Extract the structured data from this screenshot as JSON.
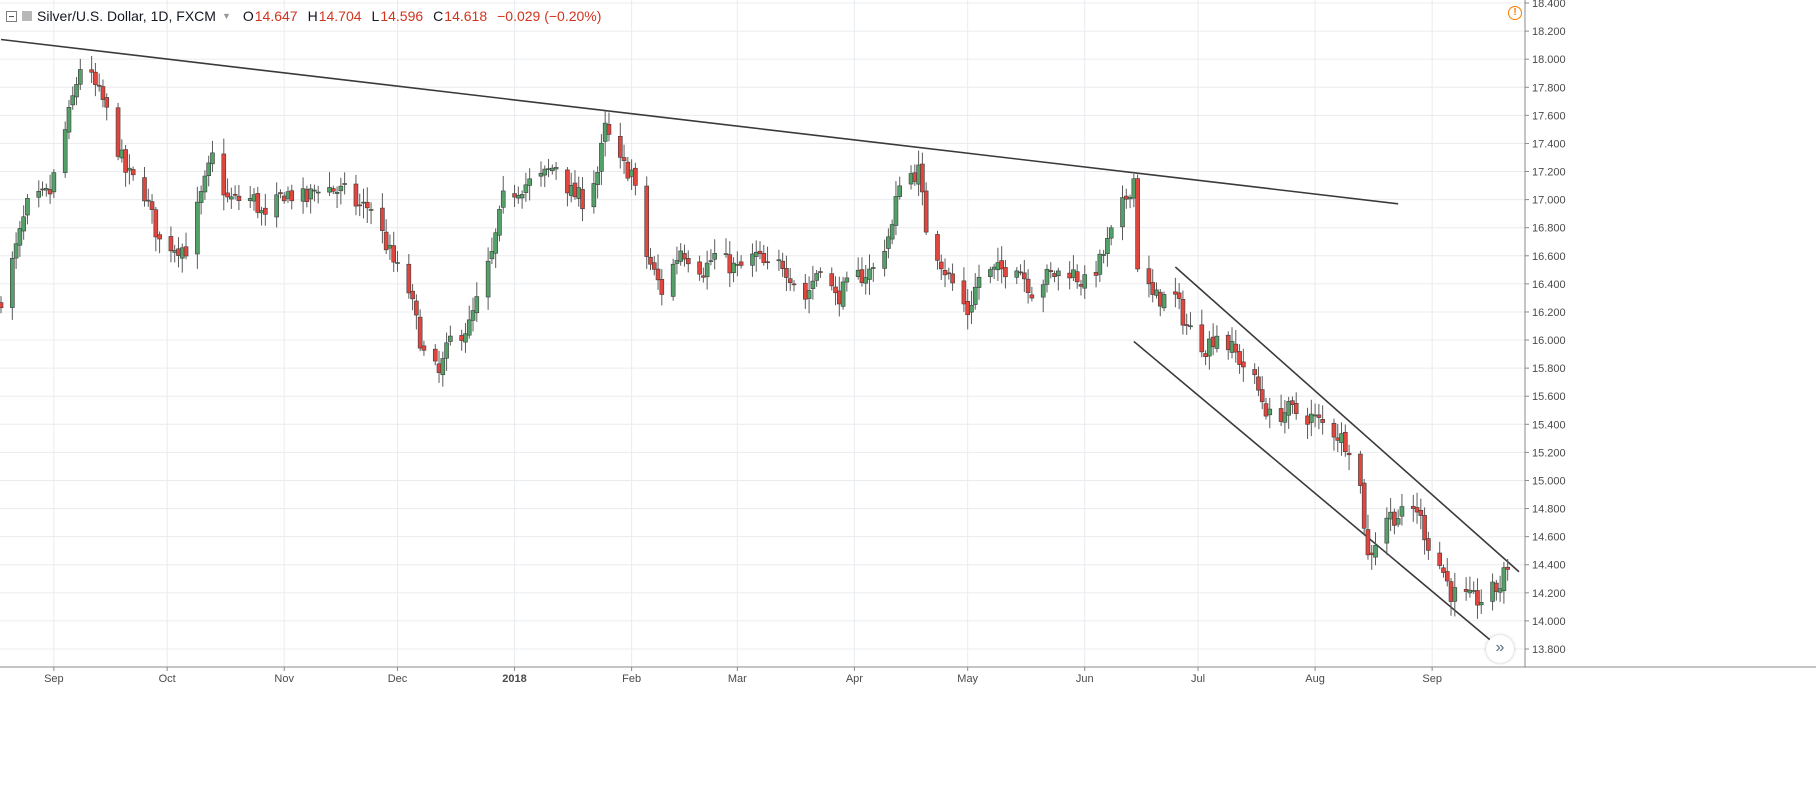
{
  "legend": {
    "title": "Silver/U.S. Dollar, 1D, FXCM",
    "open_label": "O",
    "open": "14.647",
    "high_label": "H",
    "high": "14.704",
    "low_label": "L",
    "low": "14.596",
    "close_label": "C",
    "close": "14.618",
    "change": "−0.029 (−0.20%)"
  },
  "colors": {
    "up": "#53a069",
    "down": "#e0463d",
    "wick": "#5a5a5a",
    "grid": "#e9ecef",
    "axis_text": "#4a4a4a",
    "trendline": "#3a3a3a",
    "alert": "#f57c00"
  },
  "chart_data": {
    "type": "candlestick",
    "symbol": "Silver/U.S. Dollar",
    "interval": "1D",
    "ylim": [
      13.69,
      18.41
    ],
    "grid": true,
    "y_ticks": [
      "13.800",
      "14.000",
      "14.200",
      "14.400",
      "14.600",
      "14.800",
      "15.000",
      "15.200",
      "15.400",
      "15.600",
      "15.800",
      "16.000",
      "16.200",
      "16.400",
      "16.600",
      "16.800",
      "17.000",
      "17.200",
      "17.400",
      "17.600",
      "17.800",
      "18.000",
      "18.200",
      "18.400"
    ],
    "x_axis": {
      "start": "2017-08-18",
      "end": "2018-09-24",
      "labels": [
        {
          "date": "2017-09-01",
          "text": "Sep"
        },
        {
          "date": "2017-10-01",
          "text": "Oct"
        },
        {
          "date": "2017-11-01",
          "text": "Nov"
        },
        {
          "date": "2017-12-01",
          "text": "Dec"
        },
        {
          "date": "2018-01-01",
          "text": "2018"
        },
        {
          "date": "2018-02-01",
          "text": "Feb"
        },
        {
          "date": "2018-03-01",
          "text": "Mar"
        },
        {
          "date": "2018-04-01",
          "text": "Apr"
        },
        {
          "date": "2018-05-01",
          "text": "May"
        },
        {
          "date": "2018-06-01",
          "text": "Jun"
        },
        {
          "date": "2018-07-01",
          "text": "Jul"
        },
        {
          "date": "2018-08-01",
          "text": "Aug"
        },
        {
          "date": "2018-09-01",
          "text": "Sep"
        }
      ]
    },
    "price_anchors": [
      [
        "2017-08-18",
        16.3
      ],
      [
        "2017-08-21",
        16.55
      ],
      [
        "2017-08-25",
        16.95
      ],
      [
        "2017-08-31",
        17.05
      ],
      [
        "2017-09-05",
        17.6
      ],
      [
        "2017-09-08",
        17.95
      ],
      [
        "2017-09-11",
        17.85
      ],
      [
        "2017-09-14",
        17.7
      ],
      [
        "2017-09-20",
        17.2
      ],
      [
        "2017-09-25",
        17.05
      ],
      [
        "2017-09-29",
        16.7
      ],
      [
        "2017-10-06",
        16.65
      ],
      [
        "2017-10-13",
        17.3
      ],
      [
        "2017-10-17",
        17.0
      ],
      [
        "2017-10-24",
        17.0
      ],
      [
        "2017-10-27",
        16.85
      ],
      [
        "2017-11-01",
        17.05
      ],
      [
        "2017-11-07",
        17.0
      ],
      [
        "2017-11-10",
        17.1
      ],
      [
        "2017-11-17",
        17.05
      ],
      [
        "2017-11-21",
        16.95
      ],
      [
        "2017-11-24",
        16.95
      ],
      [
        "2017-11-30",
        16.55
      ],
      [
        "2017-12-04",
        16.35
      ],
      [
        "2017-12-08",
        15.9
      ],
      [
        "2017-12-12",
        15.75
      ],
      [
        "2017-12-15",
        16.0
      ],
      [
        "2017-12-20",
        16.1
      ],
      [
        "2017-12-26",
        16.6
      ],
      [
        "2017-12-29",
        17.0
      ],
      [
        "2018-01-03",
        17.1
      ],
      [
        "2018-01-08",
        17.15
      ],
      [
        "2018-01-12",
        17.25
      ],
      [
        "2018-01-16",
        17.05
      ],
      [
        "2018-01-19",
        17.0
      ],
      [
        "2018-01-23",
        17.2
      ],
      [
        "2018-01-25",
        17.5
      ],
      [
        "2018-01-29",
        17.25
      ],
      [
        "2018-02-01",
        17.2
      ],
      [
        "2018-02-05",
        16.6
      ],
      [
        "2018-02-09",
        16.35
      ],
      [
        "2018-02-14",
        16.65
      ],
      [
        "2018-02-20",
        16.5
      ],
      [
        "2018-02-23",
        16.6
      ],
      [
        "2018-03-01",
        16.5
      ],
      [
        "2018-03-06",
        16.6
      ],
      [
        "2018-03-09",
        16.5
      ],
      [
        "2018-03-13",
        16.55
      ],
      [
        "2018-03-19",
        16.3
      ],
      [
        "2018-03-23",
        16.55
      ],
      [
        "2018-03-27",
        16.3
      ],
      [
        "2018-04-02",
        16.45
      ],
      [
        "2018-04-06",
        16.5
      ],
      [
        "2018-04-11",
        16.8
      ],
      [
        "2018-04-13",
        17.15
      ],
      [
        "2018-04-18",
        17.2
      ],
      [
        "2018-04-20",
        16.8
      ],
      [
        "2018-04-25",
        16.5
      ],
      [
        "2018-05-01",
        16.2
      ],
      [
        "2018-05-04",
        16.45
      ],
      [
        "2018-05-10",
        16.5
      ],
      [
        "2018-05-14",
        16.55
      ],
      [
        "2018-05-18",
        16.35
      ],
      [
        "2018-05-22",
        16.45
      ],
      [
        "2018-05-28",
        16.5
      ],
      [
        "2018-06-01",
        16.4
      ],
      [
        "2018-06-05",
        16.55
      ],
      [
        "2018-06-11",
        16.95
      ],
      [
        "2018-06-14",
        17.15
      ],
      [
        "2018-06-15",
        16.55
      ],
      [
        "2018-06-19",
        16.3
      ],
      [
        "2018-06-25",
        16.3
      ],
      [
        "2018-06-28",
        16.1
      ],
      [
        "2018-07-03",
        15.95
      ],
      [
        "2018-07-06",
        16.05
      ],
      [
        "2018-07-11",
        15.9
      ],
      [
        "2018-07-16",
        15.7
      ],
      [
        "2018-07-20",
        15.45
      ],
      [
        "2018-07-25",
        15.5
      ],
      [
        "2018-07-31",
        15.45
      ],
      [
        "2018-08-06",
        15.35
      ],
      [
        "2018-08-10",
        15.25
      ],
      [
        "2018-08-13",
        14.95
      ],
      [
        "2018-08-15",
        14.45
      ],
      [
        "2018-08-20",
        14.75
      ],
      [
        "2018-08-24",
        14.75
      ],
      [
        "2018-08-28",
        14.8
      ],
      [
        "2018-08-31",
        14.55
      ],
      [
        "2018-09-04",
        14.35
      ],
      [
        "2018-09-06",
        14.2
      ],
      [
        "2018-09-11",
        14.15
      ],
      [
        "2018-09-14",
        14.15
      ],
      [
        "2018-09-19",
        14.25
      ],
      [
        "2018-09-21",
        14.4
      ]
    ],
    "trendlines": [
      {
        "name": "resistance",
        "from": [
          "2017-08-18",
          18.14
        ],
        "to": [
          "2018-08-23",
          16.97
        ]
      },
      {
        "name": "channel-upper",
        "from": [
          "2018-06-25",
          16.52
        ],
        "to": [
          "2018-09-24",
          14.35
        ]
      },
      {
        "name": "channel-lower",
        "from": [
          "2018-06-14",
          15.99
        ],
        "to": [
          "2018-09-21",
          13.76
        ]
      }
    ]
  },
  "ui": {
    "alert_icon": "exclamation-circle-icon",
    "alert_glyph": "!",
    "scroll_icon": "double-chevron-right-icon",
    "scroll_glyph": "»"
  }
}
